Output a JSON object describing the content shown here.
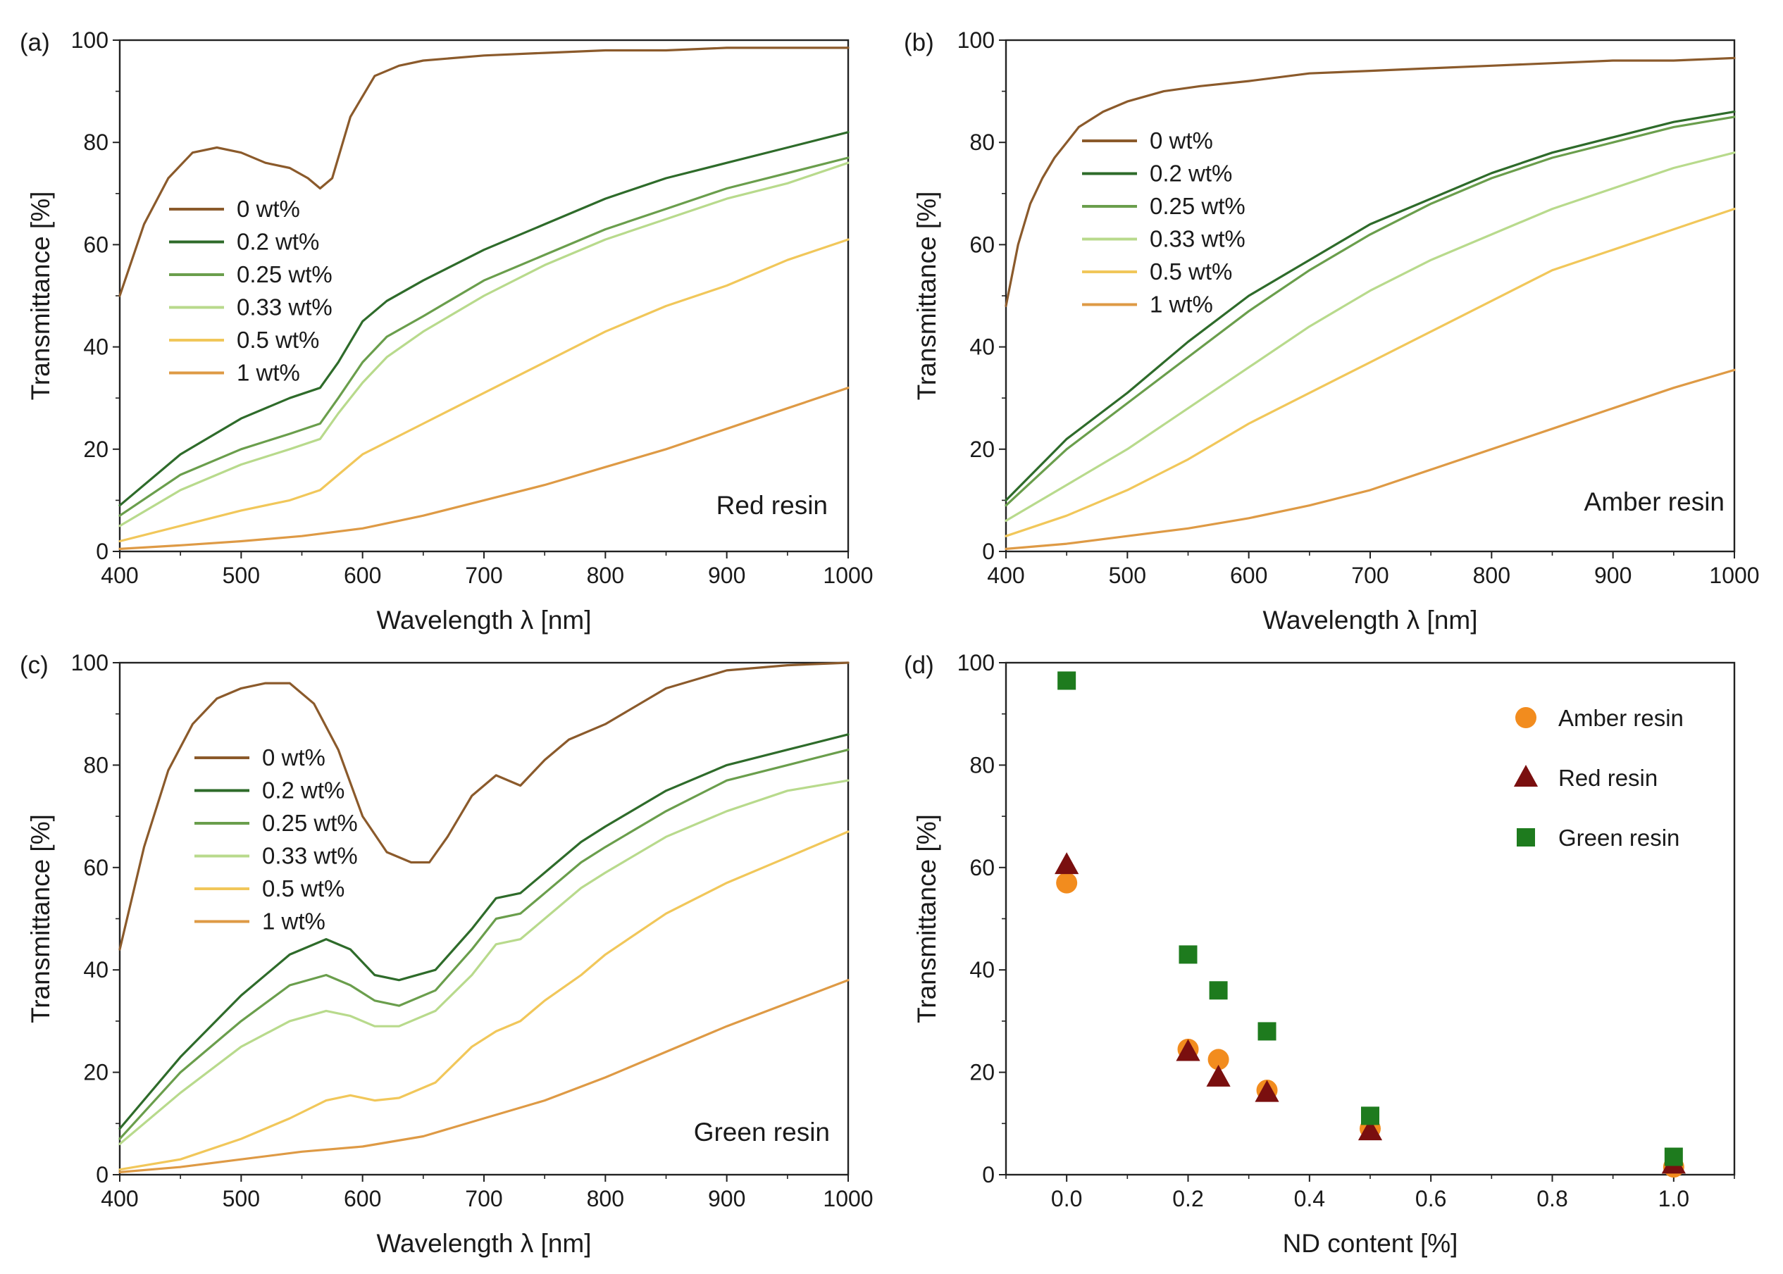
{
  "colors": {
    "0 wt%": "#8B5A2B",
    "0.2 wt%": "#2E6B2A",
    "0.25 wt%": "#6A9E4C",
    "0.33 wt%": "#B8DA8C",
    "0.5 wt%": "#F1C75A",
    "1 wt%": "#DE9A45",
    "Amber resin": "#F28C1E",
    "Red resin": "#7A0F0F",
    "Green resin": "#1E7B1E"
  },
  "chart_data": [
    {
      "panel": "(a)",
      "type": "line",
      "annotation": "Red resin",
      "xlabel": "Wavelength λ [nm]",
      "ylabel": "Transmittance [%]",
      "xlim": [
        400,
        1000
      ],
      "ylim": [
        0,
        100
      ],
      "xticks": [
        "400",
        "500",
        "600",
        "700",
        "800",
        "900",
        "1000"
      ],
      "yticks": [
        "0",
        "20",
        "40",
        "60",
        "80",
        "100"
      ],
      "legend": [
        "0 wt%",
        "0.2 wt%",
        "0.25 wt%",
        "0.33 wt%",
        "0.5 wt%",
        "1 wt%"
      ],
      "series": [
        {
          "name": "0 wt%",
          "x": [
            400,
            420,
            440,
            460,
            480,
            500,
            520,
            540,
            555,
            565,
            575,
            590,
            610,
            630,
            650,
            700,
            750,
            800,
            850,
            900,
            950,
            1000
          ],
          "y": [
            50,
            64,
            73,
            78,
            79,
            78,
            76,
            75,
            73,
            71,
            73,
            85,
            93,
            95,
            96,
            97,
            97.5,
            98,
            98,
            98.5,
            98.5,
            98.5
          ]
        },
        {
          "name": "0.2 wt%",
          "x": [
            400,
            450,
            500,
            540,
            565,
            580,
            600,
            620,
            650,
            700,
            750,
            800,
            850,
            900,
            950,
            1000
          ],
          "y": [
            9,
            19,
            26,
            30,
            32,
            37,
            45,
            49,
            53,
            59,
            64,
            69,
            73,
            76,
            79,
            82
          ]
        },
        {
          "name": "0.25 wt%",
          "x": [
            400,
            450,
            500,
            540,
            565,
            580,
            600,
            620,
            650,
            700,
            750,
            800,
            850,
            900,
            950,
            1000
          ],
          "y": [
            7,
            15,
            20,
            23,
            25,
            30,
            37,
            42,
            46,
            53,
            58,
            63,
            67,
            71,
            74,
            77
          ]
        },
        {
          "name": "0.33 wt%",
          "x": [
            400,
            450,
            500,
            540,
            565,
            580,
            600,
            620,
            650,
            700,
            750,
            800,
            850,
            900,
            950,
            1000
          ],
          "y": [
            5,
            12,
            17,
            20,
            22,
            27,
            33,
            38,
            43,
            50,
            56,
            61,
            65,
            69,
            72,
            76
          ]
        },
        {
          "name": "0.5 wt%",
          "x": [
            400,
            450,
            500,
            540,
            565,
            580,
            600,
            650,
            700,
            750,
            800,
            850,
            900,
            950,
            1000
          ],
          "y": [
            2,
            5,
            8,
            10,
            12,
            15,
            19,
            25,
            31,
            37,
            43,
            48,
            52,
            57,
            61
          ]
        },
        {
          "name": "1 wt%",
          "x": [
            400,
            450,
            500,
            550,
            600,
            650,
            700,
            750,
            800,
            850,
            900,
            950,
            1000
          ],
          "y": [
            0.5,
            1.2,
            2,
            3,
            4.5,
            7,
            10,
            13,
            16.5,
            20,
            24,
            28,
            32
          ]
        }
      ]
    },
    {
      "panel": "(b)",
      "type": "line",
      "annotation": "Amber resin",
      "xlabel": "Wavelength λ [nm]",
      "ylabel": "Transmittance [%]",
      "xlim": [
        400,
        1000
      ],
      "ylim": [
        0,
        100
      ],
      "xticks": [
        "400",
        "500",
        "600",
        "700",
        "800",
        "900",
        "1000"
      ],
      "yticks": [
        "0",
        "20",
        "40",
        "60",
        "80",
        "100"
      ],
      "legend": [
        "0 wt%",
        "0.2 wt%",
        "0.25 wt%",
        "0.33 wt%",
        "0.5 wt%",
        "1 wt%"
      ],
      "series": [
        {
          "name": "0 wt%",
          "x": [
            400,
            410,
            420,
            430,
            440,
            450,
            460,
            480,
            500,
            530,
            560,
            600,
            650,
            700,
            750,
            800,
            850,
            900,
            950,
            1000
          ],
          "y": [
            48,
            60,
            68,
            73,
            77,
            80,
            83,
            86,
            88,
            90,
            91,
            92,
            93.5,
            94,
            94.5,
            95,
            95.5,
            96,
            96,
            96.5
          ]
        },
        {
          "name": "0.2 wt%",
          "x": [
            400,
            450,
            500,
            550,
            600,
            650,
            700,
            750,
            800,
            850,
            900,
            950,
            1000
          ],
          "y": [
            10,
            22,
            31,
            41,
            50,
            57,
            64,
            69,
            74,
            78,
            81,
            84,
            86
          ]
        },
        {
          "name": "0.25 wt%",
          "x": [
            400,
            450,
            500,
            550,
            600,
            650,
            700,
            750,
            800,
            850,
            900,
            950,
            1000
          ],
          "y": [
            9,
            20,
            29,
            38,
            47,
            55,
            62,
            68,
            73,
            77,
            80,
            83,
            85
          ]
        },
        {
          "name": "0.33 wt%",
          "x": [
            400,
            450,
            500,
            550,
            600,
            650,
            700,
            750,
            800,
            850,
            900,
            950,
            1000
          ],
          "y": [
            6,
            13,
            20,
            28,
            36,
            44,
            51,
            57,
            62,
            67,
            71,
            75,
            78
          ]
        },
        {
          "name": "0.5 wt%",
          "x": [
            400,
            450,
            500,
            550,
            600,
            650,
            700,
            750,
            800,
            850,
            900,
            950,
            1000
          ],
          "y": [
            3,
            7,
            12,
            18,
            25,
            31,
            37,
            43,
            49,
            55,
            59,
            63,
            67
          ]
        },
        {
          "name": "1 wt%",
          "x": [
            400,
            450,
            500,
            550,
            600,
            650,
            700,
            750,
            800,
            850,
            900,
            950,
            1000
          ],
          "y": [
            0.5,
            1.5,
            3,
            4.5,
            6.5,
            9,
            12,
            16,
            20,
            24,
            28,
            32,
            35.5
          ]
        }
      ]
    },
    {
      "panel": "(c)",
      "type": "line",
      "annotation": "Green resin",
      "xlabel": "Wavelength λ [nm]",
      "ylabel": "Transmittance [%]",
      "xlim": [
        400,
        1000
      ],
      "ylim": [
        0,
        100
      ],
      "xticks": [
        "400",
        "500",
        "600",
        "700",
        "800",
        "900",
        "1000"
      ],
      "yticks": [
        "0",
        "20",
        "40",
        "60",
        "80",
        "100"
      ],
      "legend": [
        "0 wt%",
        "0.2 wt%",
        "0.25 wt%",
        "0.33 wt%",
        "0.5 wt%",
        "1 wt%"
      ],
      "series": [
        {
          "name": "0 wt%",
          "x": [
            400,
            420,
            440,
            460,
            480,
            500,
            520,
            540,
            560,
            580,
            600,
            620,
            640,
            655,
            670,
            690,
            710,
            730,
            750,
            770,
            800,
            850,
            900,
            950,
            1000
          ],
          "y": [
            44,
            64,
            79,
            88,
            93,
            95,
            96,
            96,
            92,
            83,
            70,
            63,
            61,
            61,
            66,
            74,
            78,
            76,
            81,
            85,
            88,
            95,
            98.5,
            99.5,
            100
          ]
        },
        {
          "name": "0.2 wt%",
          "x": [
            400,
            450,
            500,
            540,
            570,
            590,
            610,
            630,
            660,
            690,
            710,
            730,
            750,
            780,
            800,
            850,
            900,
            950,
            1000
          ],
          "y": [
            9,
            23,
            35,
            43,
            46,
            44,
            39,
            38,
            40,
            48,
            54,
            55,
            59,
            65,
            68,
            75,
            80,
            83,
            86
          ]
        },
        {
          "name": "0.25 wt%",
          "x": [
            400,
            450,
            500,
            540,
            570,
            590,
            610,
            630,
            660,
            690,
            710,
            730,
            750,
            780,
            800,
            850,
            900,
            950,
            1000
          ],
          "y": [
            7,
            20,
            30,
            37,
            39,
            37,
            34,
            33,
            36,
            44,
            50,
            51,
            55,
            61,
            64,
            71,
            77,
            80,
            83
          ]
        },
        {
          "name": "0.33 wt%",
          "x": [
            400,
            450,
            500,
            540,
            570,
            590,
            610,
            630,
            660,
            690,
            710,
            730,
            750,
            780,
            800,
            850,
            900,
            950,
            1000
          ],
          "y": [
            6,
            16,
            25,
            30,
            32,
            31,
            29,
            29,
            32,
            39,
            45,
            46,
            50,
            56,
            59,
            66,
            71,
            75,
            77
          ]
        },
        {
          "name": "0.5 wt%",
          "x": [
            400,
            450,
            500,
            540,
            570,
            590,
            610,
            630,
            660,
            690,
            710,
            730,
            750,
            780,
            800,
            850,
            900,
            950,
            1000
          ],
          "y": [
            1,
            3,
            7,
            11,
            14.5,
            15.5,
            14.5,
            15,
            18,
            25,
            28,
            30,
            34,
            39,
            43,
            51,
            57,
            62,
            67
          ]
        },
        {
          "name": "1 wt%",
          "x": [
            400,
            450,
            500,
            550,
            600,
            650,
            700,
            750,
            800,
            850,
            900,
            950,
            1000
          ],
          "y": [
            0.5,
            1.5,
            3,
            4.5,
            5.5,
            7.5,
            11,
            14.5,
            19,
            24,
            29,
            33.5,
            38
          ]
        }
      ]
    },
    {
      "panel": "(d)",
      "type": "scatter",
      "xlabel": "ND content [%]",
      "ylabel": "Transmittance [%]",
      "xlim": [
        -0.1,
        1.1
      ],
      "ylim": [
        0,
        100
      ],
      "xticks": [
        "0.0",
        "0.2",
        "0.4",
        "0.6",
        "0.8",
        "1.0"
      ],
      "yticks": [
        "0",
        "20",
        "40",
        "60",
        "80",
        "100"
      ],
      "legend": [
        "Amber resin",
        "Red resin",
        "Green resin"
      ],
      "series": [
        {
          "name": "Amber resin",
          "marker": "circle",
          "x": [
            0,
            0.2,
            0.25,
            0.33,
            0.5,
            1.0
          ],
          "y": [
            57,
            24.5,
            22.5,
            16.5,
            9,
            1.5
          ]
        },
        {
          "name": "Red resin",
          "marker": "triangle",
          "x": [
            0,
            0.2,
            0.25,
            0.33,
            0.5,
            1.0
          ],
          "y": [
            60.5,
            24,
            19,
            16,
            8.5,
            2
          ]
        },
        {
          "name": "Green resin",
          "marker": "square",
          "x": [
            0,
            0.2,
            0.25,
            0.33,
            0.5,
            1.0
          ],
          "y": [
            96.5,
            43,
            36,
            28,
            11.5,
            3.5
          ]
        }
      ]
    }
  ]
}
